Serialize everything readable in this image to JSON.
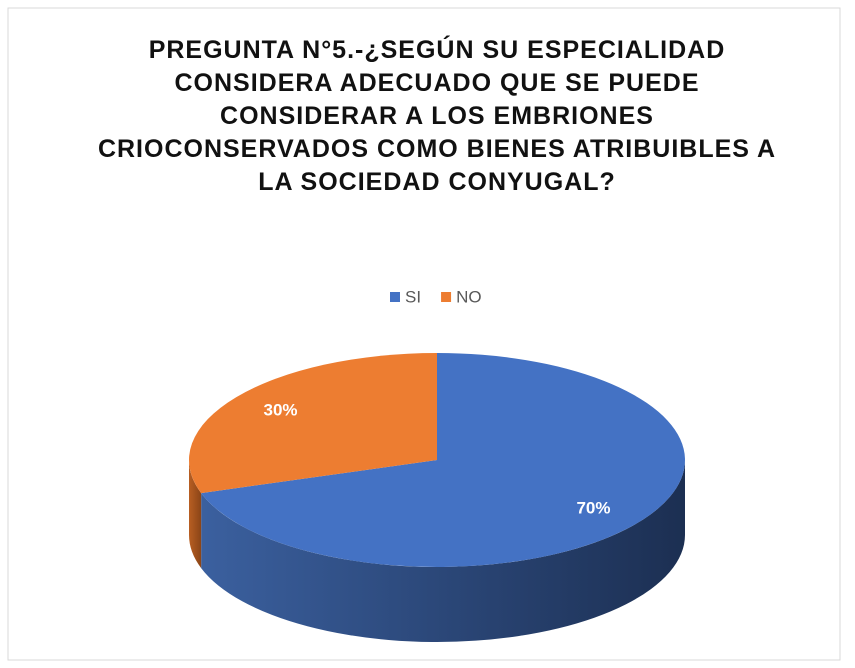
{
  "chart_data": {
    "type": "pie",
    "title": "PREGUNTA N°5.-¿SEGÚN SU ESPECIALIDAD CONSIDERA ADECUADO QUE SE PUEDE CONSIDERAR A LOS EMBRIONES CRIOCONSERVADOS COMO BIENES ATRIBUIBLES A LA SOCIEDAD CONYUGAL?",
    "categories": [
      "SI",
      "NO"
    ],
    "values": [
      70,
      30
    ],
    "value_labels": [
      "70%",
      "30%"
    ],
    "colors": [
      "#4472c4",
      "#ed7d31"
    ],
    "legend": "top"
  }
}
